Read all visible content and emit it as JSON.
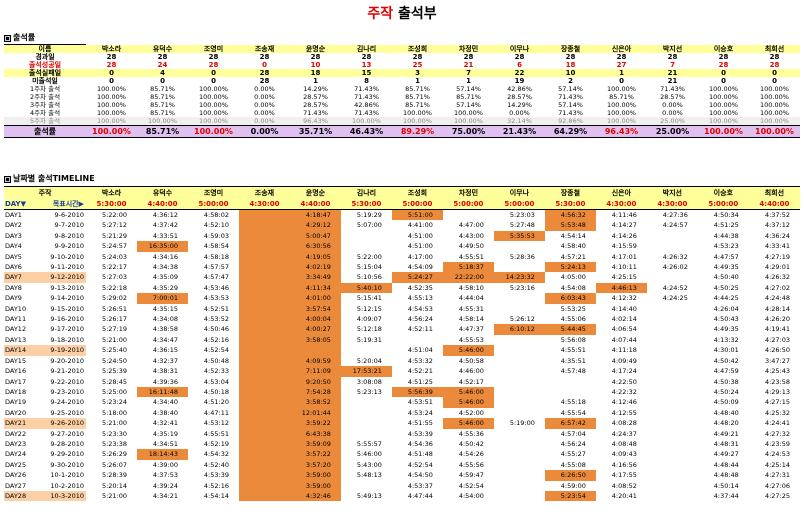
{
  "title": {
    "part1": "주작",
    "part2": " 출석부"
  },
  "sections": {
    "attendance": "출석률",
    "timeline": "날짜별 출석TIMELINE"
  },
  "names": [
    "박소라",
    "유덕수",
    "조영미",
    "조송재",
    "윤명순",
    "김나리",
    "조성희",
    "차정민",
    "이무나",
    "장종철",
    "신은아",
    "박지선",
    "이승호",
    "최희선"
  ],
  "summary": {
    "header_label": "이름",
    "rows": [
      {
        "label": "경과일",
        "values": [
          "28",
          "28",
          "28",
          "28",
          "28",
          "28",
          "28",
          "28",
          "28",
          "28",
          "28",
          "28",
          "28",
          "28"
        ]
      },
      {
        "label": "출석성공일",
        "values": [
          "28",
          "24",
          "28",
          "0",
          "10",
          "13",
          "25",
          "21",
          "6",
          "18",
          "27",
          "7",
          "28",
          "28"
        ]
      },
      {
        "label": "출석실패일",
        "values": [
          "0",
          "4",
          "0",
          "28",
          "18",
          "15",
          "3",
          "7",
          "22",
          "10",
          "1",
          "21",
          "0",
          "0"
        ]
      },
      {
        "label": "미출석일",
        "values": [
          "0",
          "0",
          "0",
          "28",
          "1",
          "8",
          "1",
          "1",
          "19",
          "2",
          "0",
          "21",
          "0",
          "0"
        ]
      },
      {
        "label": "1주차 출석",
        "values": [
          "100.00%",
          "85.71%",
          "100.00%",
          "0.00%",
          "14.29%",
          "71.43%",
          "85.71%",
          "57.14%",
          "42.86%",
          "57.14%",
          "100.00%",
          "71.43%",
          "100.00%",
          "100.00%"
        ]
      },
      {
        "label": "2주차 출석",
        "values": [
          "100.00%",
          "85.71%",
          "100.00%",
          "0.00%",
          "28.57%",
          "71.43%",
          "85.71%",
          "85.71%",
          "28.57%",
          "71.43%",
          "85.71%",
          "28.57%",
          "100.00%",
          "100.00%"
        ]
      },
      {
        "label": "3주차 출석",
        "values": [
          "100.00%",
          "85.71%",
          "100.00%",
          "0.00%",
          "28.57%",
          "42.86%",
          "85.71%",
          "57.14%",
          "14.29%",
          "57.14%",
          "100.00%",
          "0.00%",
          "100.00%",
          "100.00%"
        ]
      },
      {
        "label": "4주차 출석",
        "values": [
          "100.00%",
          "85.71%",
          "100.00%",
          "0.00%",
          "71.43%",
          "71.43%",
          "100.00%",
          "100.00%",
          "0.00%",
          "71.43%",
          "100.00%",
          "0.00%",
          "100.00%",
          "100.00%"
        ]
      },
      {
        "label": "5주차 출석",
        "values": [
          "100.00%",
          "100.00%",
          "100.00%",
          "0.00%",
          "96.43%",
          "100.00%",
          "100.00%",
          "100.00%",
          "32.14%",
          "92.86%",
          "100.00%",
          "25.00%",
          "100.00%",
          "100.00%"
        ]
      }
    ],
    "rate_label": "출석률",
    "rate": [
      "100.00%",
      "85.71%",
      "100.00%",
      "0.00%",
      "35.71%",
      "46.43%",
      "89.29%",
      "75.00%",
      "21.43%",
      "64.29%",
      "96.43%",
      "25.00%",
      "100.00%",
      "100.00%"
    ]
  },
  "timeline": {
    "header_label": "주작",
    "day_label": "DAY▼",
    "goal_label": "목표시간▶",
    "goal": [
      "5:30:00",
      "4:40:00",
      "5:00:00",
      "4:30:00",
      "4:40:00",
      "5:30:00",
      "5:00:00",
      "5:00:00",
      "5:00:00",
      "5:30:00",
      "4:30:00",
      "4:30:00",
      "5:00:00",
      "4:40:00"
    ],
    "days": [
      {
        "day": "DAY1",
        "date": "9-6-2010",
        "t": [
          "5:22:00",
          "4:36:12",
          "4:58:02",
          "",
          "4:18:47",
          "5:19:29",
          "5:51:00",
          "",
          "5:23:03",
          "4:56:32",
          "4:11:46",
          "4:27:36",
          "4:50:34",
          "4:37:52"
        ],
        "o": [
          4,
          6,
          9
        ]
      },
      {
        "day": "DAY2",
        "date": "9-7-2010",
        "t": [
          "5:27:12",
          "4:37:42",
          "4:52:10",
          "",
          "4:29:12",
          "5:07:00",
          "4:41:00",
          "4:47:00",
          "5:27:48",
          "5:53:48",
          "4:14:27",
          "4:24:57",
          "4:51:25",
          "4:37:12"
        ],
        "o": [
          4,
          9
        ]
      },
      {
        "day": "DAY3",
        "date": "9-8-2010",
        "t": [
          "5:21:29",
          "4:33:51",
          "4:59:03",
          "",
          "5:00:47",
          "",
          "4:51:00",
          "4:43:00",
          "5:35:53",
          "4:54:14",
          "4:14:26",
          "",
          "4:44:38",
          "4:36:24"
        ],
        "o": [
          4,
          8
        ]
      },
      {
        "day": "DAY4",
        "date": "9-9-2010",
        "t": [
          "5:24:57",
          "16:35:00",
          "4:58:54",
          "",
          "6:30:56",
          "",
          "4:51:00",
          "4:49:50",
          "",
          "4:58:40",
          "4:15:59",
          "",
          "4:53:23",
          "4:33:41"
        ],
        "o": [
          1,
          4
        ]
      },
      {
        "day": "DAY5",
        "date": "9-10-2010",
        "t": [
          "5:24:03",
          "4:34:16",
          "4:58:18",
          "",
          "4:19:05",
          "5:22:00",
          "4:17:00",
          "4:55:51",
          "5:28:36",
          "4:57:21",
          "4:17:01",
          "4:26:32",
          "4:47:57",
          "4:27:19"
        ],
        "o": [
          4
        ]
      },
      {
        "day": "DAY6",
        "date": "9-11-2010",
        "t": [
          "5:22:17",
          "4:34:38",
          "4:57:57",
          "",
          "4:02:19",
          "5:15:04",
          "4:54:09",
          "5:18:37",
          "",
          "5:24:13",
          "4:10:11",
          "4:26:02",
          "4:49:35",
          "4:29:01"
        ],
        "o": [
          4,
          7,
          9
        ]
      },
      {
        "day": "DAY7",
        "date": "9-12-2010",
        "t": [
          "5:27:03",
          "4:35:09",
          "4:57:47",
          "",
          "3:34:49",
          "5:10:56",
          "5:24:27",
          "22:22:00",
          "14:23:32",
          "4:05:00",
          "4:25:15",
          "",
          "4:50:40",
          "4:26:32"
        ],
        "o": [
          4,
          6,
          7,
          8
        ],
        "h": true
      },
      {
        "day": "DAY8",
        "date": "9-13-2010",
        "t": [
          "5:22:18",
          "4:35:29",
          "4:53:46",
          "",
          "4:11:34",
          "5:40:10",
          "4:52:35",
          "4:58:10",
          "5:23:16",
          "4:54:08",
          "4:46:13",
          "4:24:52",
          "4:50:25",
          "4:27:02"
        ],
        "o": [
          4,
          5,
          10
        ]
      },
      {
        "day": "DAY9",
        "date": "9-14-2010",
        "t": [
          "5:29:02",
          "7:00:01",
          "4:53:53",
          "",
          "4:01:00",
          "5:15:41",
          "4:55:13",
          "4:44:04",
          "",
          "6:03:43",
          "4:12:32",
          "4:24:25",
          "4:44:25",
          "4:24:48"
        ],
        "o": [
          1,
          4,
          9
        ]
      },
      {
        "day": "DAY10",
        "date": "9-15-2010",
        "t": [
          "5:26:51",
          "4:35:15",
          "4:52:51",
          "",
          "3:57:54",
          "5:12:15",
          "4:54:53",
          "4:55:31",
          "",
          "5:53:25",
          "4:14:40",
          "",
          "4:26:04",
          "4:28:14"
        ],
        "o": [
          4
        ]
      },
      {
        "day": "DAY11",
        "date": "9-16-2010",
        "t": [
          "5:26:17",
          "4:34:08",
          "4:53:52",
          "",
          "4:00:04",
          "4:09:07",
          "4:56:24",
          "4:58:14",
          "5:26:12",
          "4:55:06",
          "4:02:14",
          "",
          "4:50:43",
          "4:26:20"
        ],
        "o": [
          4
        ]
      },
      {
        "day": "DAY12",
        "date": "9-17-2010",
        "t": [
          "5:27:19",
          "4:38:58",
          "4:50:46",
          "",
          "4:00:27",
          "5:12:18",
          "4:52:11",
          "4:47:37",
          "6:10:12",
          "5:44:45",
          "4:06:54",
          "",
          "4:49:35",
          "4:19:41"
        ],
        "o": [
          4,
          8,
          9
        ]
      },
      {
        "day": "DAY13",
        "date": "9-18-2010",
        "t": [
          "5:21:00",
          "4:34:47",
          "4:52:16",
          "",
          "3:58:05",
          "5:19:31",
          "",
          "4:55:53",
          "",
          "5:56:08",
          "4:07:44",
          "",
          "4:13:32",
          "4:27:03"
        ],
        "o": [
          4
        ]
      },
      {
        "day": "DAY14",
        "date": "9-19-2010",
        "t": [
          "5:25:40",
          "4:36:15",
          "4:52:54",
          "",
          "",
          "",
          "4:51:04",
          "5:46:00",
          "",
          "4:55:51",
          "4:11:18",
          "",
          "4:30:01",
          "4:26:50"
        ],
        "o": [
          4,
          7
        ],
        "h": true
      },
      {
        "day": "DAY15",
        "date": "9-20-2010",
        "t": [
          "5:24:50",
          "4:32:37",
          "4:50:48",
          "",
          "4:09:59",
          "5:20:04",
          "4:53:32",
          "4:50:58",
          "",
          "4:35:51",
          "4:09:49",
          "",
          "4:50:42",
          "3:47:27"
        ],
        "o": [
          4
        ]
      },
      {
        "day": "DAY16",
        "date": "9-21-2010",
        "t": [
          "5:25:39",
          "4:38:31",
          "4:52:33",
          "",
          "7:11:09",
          "17:53:21",
          "4:52:21",
          "4:46:00",
          "",
          "4:57:48",
          "4:17:24",
          "",
          "4:47:59",
          "4:25:43"
        ],
        "o": [
          4,
          5
        ]
      },
      {
        "day": "DAY17",
        "date": "9-22-2010",
        "t": [
          "5:28:45",
          "4:39:36",
          "4:53:04",
          "",
          "9:20:50",
          "3:08:08",
          "4:51:25",
          "4:52:17",
          "",
          "",
          "4:22:50",
          "",
          "4:50:38",
          "4:23:58"
        ],
        "o": [
          4
        ]
      },
      {
        "day": "DAY18",
        "date": "9-23-2010",
        "t": [
          "5:25:00",
          "16:11:48",
          "4:50:18",
          "",
          "7:54:28",
          "5:23:13",
          "5:56:39",
          "5:46:00",
          "",
          "",
          "4:22:32",
          "",
          "4:50:24",
          "4:29:13"
        ],
        "o": [
          1,
          4,
          6,
          7
        ]
      },
      {
        "day": "DAY19",
        "date": "9-24-2010",
        "t": [
          "5:23:24",
          "4:34:40",
          "4:51:20",
          "",
          "3:58:52",
          "",
          "4:53:51",
          "5:46:00",
          "",
          "4:55:18",
          "4:12:46",
          "",
          "4:50:09",
          "4:27:15"
        ],
        "o": [
          4,
          7
        ]
      },
      {
        "day": "DAY20",
        "date": "9-25-2010",
        "t": [
          "5:18:00",
          "4:38:40",
          "4:47:11",
          "",
          "12:01:44",
          "",
          "4:53:24",
          "4:52:00",
          "",
          "4:55:54",
          "4:12:55",
          "",
          "4:48:40",
          "4:25:32"
        ],
        "o": [
          4
        ]
      },
      {
        "day": "DAY21",
        "date": "9-26-2010",
        "t": [
          "5:21:00",
          "4:32:41",
          "4:53:12",
          "",
          "3:59:22",
          "",
          "4:51:55",
          "5:46:00",
          "5:19:00",
          "6:57:42",
          "4:08:28",
          "",
          "4:48:20",
          "4:24:41"
        ],
        "o": [
          4,
          7,
          9
        ],
        "h": true
      },
      {
        "day": "DAY22",
        "date": "9-27-2010",
        "t": [
          "5:23:30",
          "4:35:19",
          "4:55:51",
          "",
          "6:43:38",
          "",
          "4:53:39",
          "4:55:36",
          "",
          "4:57:04",
          "4:24:37",
          "",
          "4:49:21",
          "4:27:32"
        ],
        "o": [
          4
        ]
      },
      {
        "day": "DAY23",
        "date": "9-28-2010",
        "t": [
          "5:23:38",
          "4:34:51",
          "4:52:19",
          "",
          "3:59:09",
          "5:55:57",
          "4:54:36",
          "4:50:42",
          "",
          "4:56:24",
          "4:08:48",
          "",
          "4:48:31",
          "4:23:59"
        ],
        "o": [
          4
        ]
      },
      {
        "day": "DAY24",
        "date": "9-29-2010",
        "t": [
          "5:26:29",
          "18:14:43",
          "4:54:32",
          "",
          "3:57:22",
          "5:46:00",
          "4:51:48",
          "4:54:26",
          "",
          "4:55:27",
          "4:09:43",
          "",
          "4:49:27",
          "4:24:53"
        ],
        "o": [
          1,
          4
        ]
      },
      {
        "day": "DAY25",
        "date": "9-30-2010",
        "t": [
          "5:26:07",
          "4:39:00",
          "4:52:40",
          "",
          "3:57:20",
          "5:43:00",
          "4:52:54",
          "4:55:56",
          "",
          "4:55:08",
          "4:16:56",
          "",
          "4:48:44",
          "4:25:14"
        ],
        "o": [
          4
        ]
      },
      {
        "day": "DAY26",
        "date": "10-1-2010",
        "t": [
          "5:28:39",
          "4:37:53",
          "4:53:39",
          "",
          "3:59:00",
          "5:48:13",
          "4:54:50",
          "4:59:47",
          "",
          "6:26:50",
          "4:17:55",
          "",
          "4:48:48",
          "4:27:31"
        ],
        "o": [
          4,
          9
        ]
      },
      {
        "day": "DAY27",
        "date": "10-2-2010",
        "t": [
          "5:20:14",
          "4:39:24",
          "4:52:16",
          "",
          "3:59:00",
          "",
          "4:53:37",
          "4:52:54",
          "",
          "4:59:00",
          "4:08:52",
          "",
          "4:50:14",
          "4:27:06"
        ],
        "o": [
          4
        ]
      },
      {
        "day": "DAY28",
        "date": "10-3-2010",
        "t": [
          "5:21:00",
          "4:34:21",
          "4:54:14",
          "",
          "4:32:46",
          "5:49:13",
          "4:47:44",
          "4:54:00",
          "",
          "5:23:54",
          "4:20:41",
          "",
          "4:37:44",
          "4:27:25"
        ],
        "o": [
          4,
          9
        ],
        "h": true
      }
    ]
  },
  "colors": {
    "title_accent": "#e00000",
    "header_bg": "#ffff99",
    "rate_bg": "#e0c0f0",
    "late_fill": "#ec8a3c",
    "weekend_fill": "#fcd0a4"
  }
}
